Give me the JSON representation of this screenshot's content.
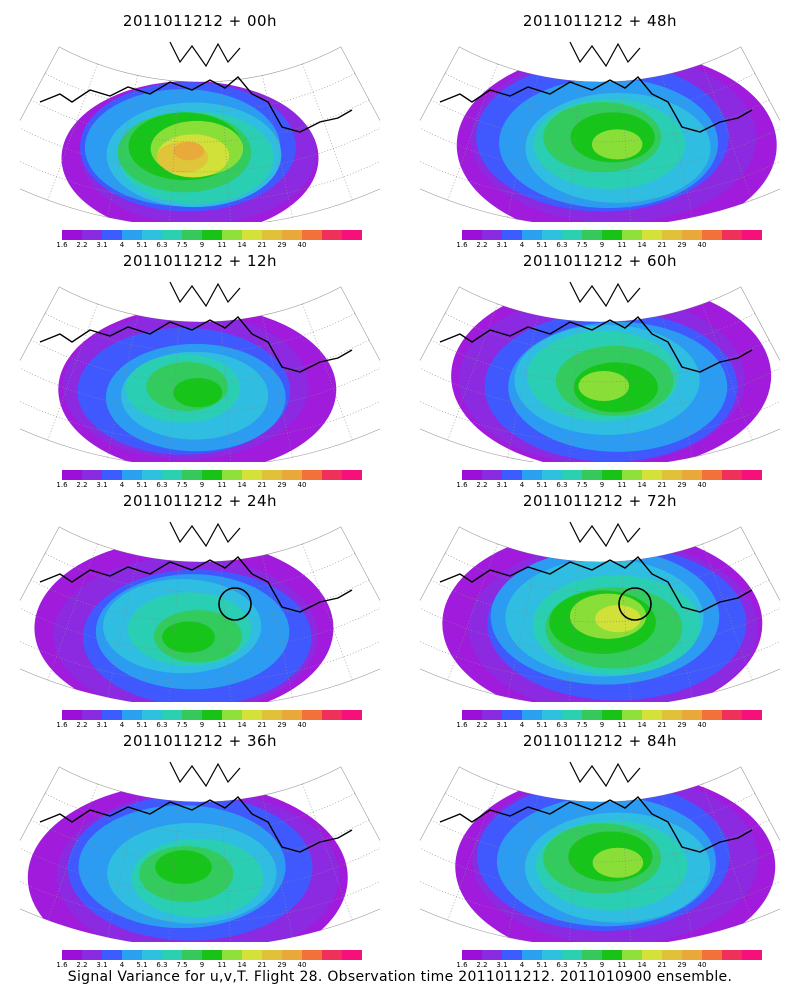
{
  "chart_data": {
    "type": "heatmap",
    "figure_type": "multi-panel filled contour maps (polar stereographic, Arctic/North America)",
    "footer_text": "Signal Variance for u,v,T. Flight 28. Observation time 2011011212. 2011010900 ensemble.",
    "colorbar": {
      "levels": [
        "1.6",
        "2.2",
        "3.1",
        "4",
        "5.1",
        "6.3",
        "7.5",
        "9",
        "11",
        "14",
        "21",
        "29",
        "40"
      ],
      "colors": [
        "#9b0fd9",
        "#8a2be2",
        "#3c5cff",
        "#2aa0f0",
        "#2fc0e0",
        "#2ad0b0",
        "#34c95a",
        "#16c316",
        "#8fe03a",
        "#d6e03a",
        "#e0c23a",
        "#e8a93a",
        "#f2703a",
        "#f0305a",
        "#f5107a"
      ]
    },
    "panels": [
      {
        "title": "2011011212 + 00h",
        "peak_level": "29",
        "circle": false
      },
      {
        "title": "2011011212 + 48h",
        "peak_level": "11",
        "circle": false
      },
      {
        "title": "2011011212 + 12h",
        "peak_level": "9",
        "circle": false
      },
      {
        "title": "2011011212 + 60h",
        "peak_level": "11",
        "circle": false
      },
      {
        "title": "2011011212 + 24h",
        "peak_level": "9",
        "circle": true
      },
      {
        "title": "2011011212 + 72h",
        "peak_level": "14",
        "circle": true
      },
      {
        "title": "2011011212 + 36h",
        "peak_level": "9",
        "circle": false
      },
      {
        "title": "2011011212 + 84h",
        "peak_level": "11",
        "circle": false
      }
    ]
  }
}
